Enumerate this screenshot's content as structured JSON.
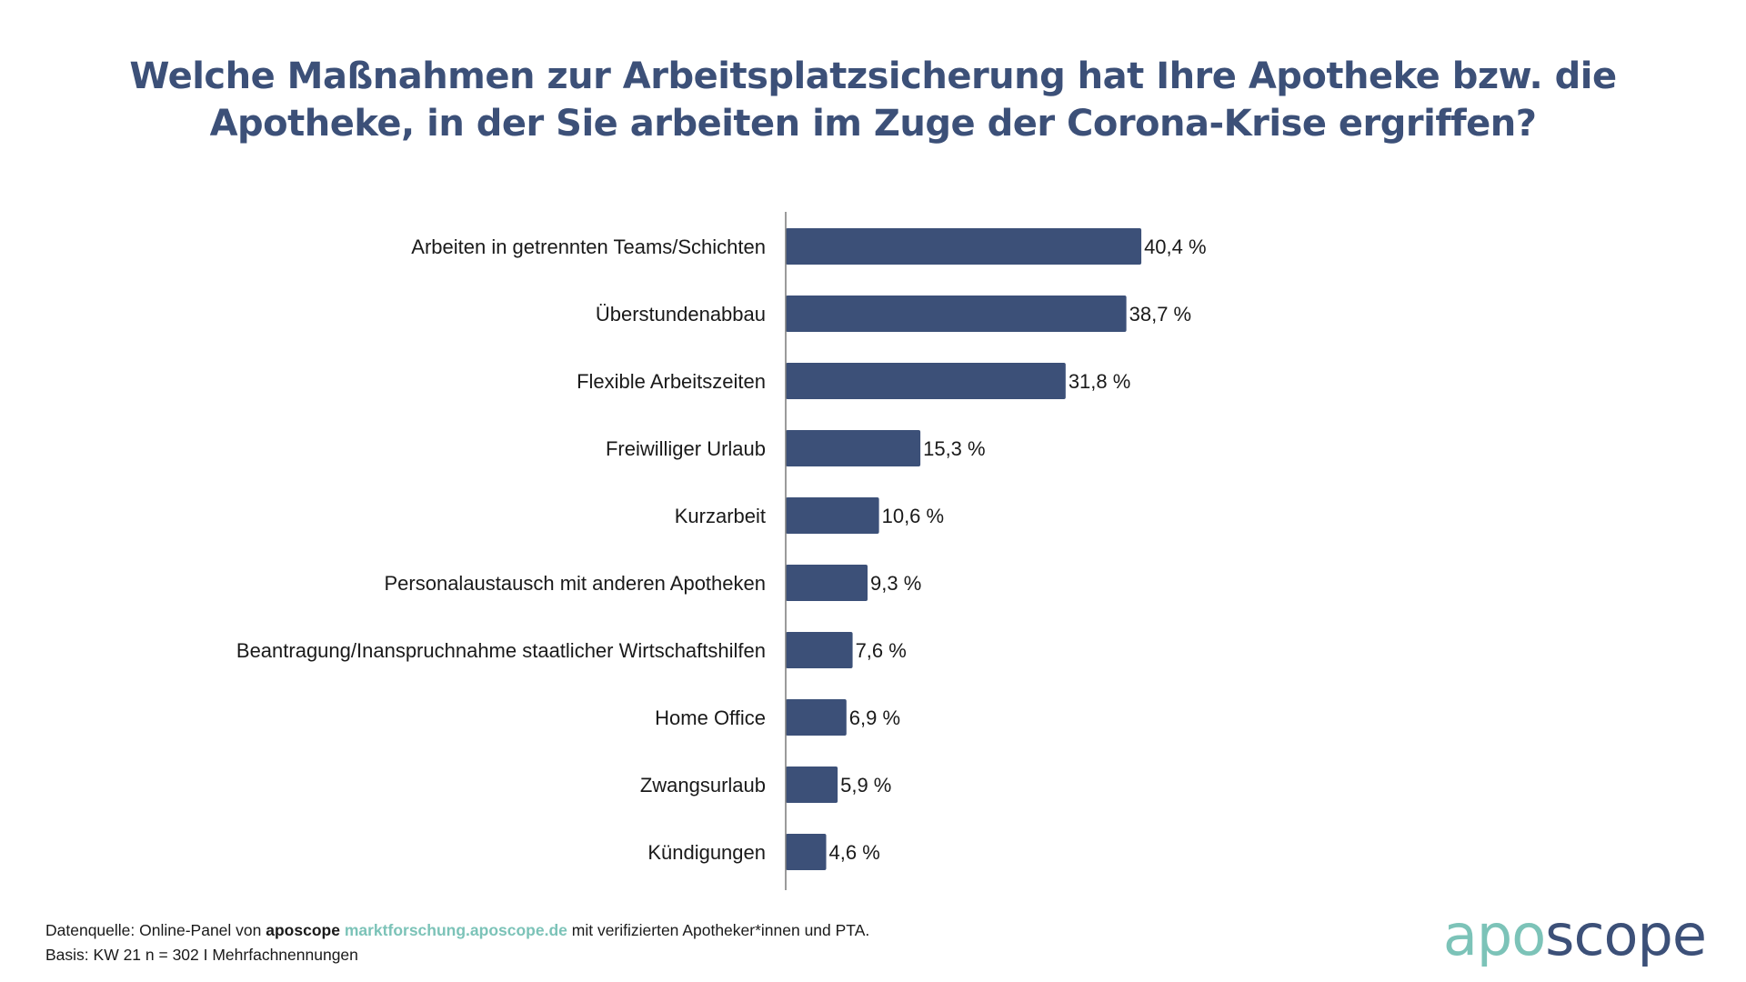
{
  "title": {
    "line1": "Welche Maßnahmen zur Arbeitsplatzsicherung hat Ihre Apotheke bzw. die",
    "line2": "Apotheke, in der Sie arbeiten im Zuge der Corona-Krise ergriffen?"
  },
  "chart_data": {
    "type": "bar",
    "orientation": "horizontal",
    "title": "Welche Maßnahmen zur Arbeitsplatzsicherung hat Ihre Apotheke bzw. die Apotheke, in der Sie arbeiten im Zuge der Corona-Krise ergriffen?",
    "xlabel": "",
    "ylabel": "",
    "unit": "%",
    "grid": false,
    "legend": "none",
    "bar_color": "#3c5078",
    "categories": [
      "Arbeiten in getrennten Teams/Schichten",
      "Überstundenabbau",
      "Flexible Arbeitszeiten",
      "Freiwilliger Urlaub",
      "Kurzarbeit",
      "Personalaustausch mit anderen Apotheken",
      "Beantragung/Inanspruchnahme staatlicher Wirtschaftshilfen",
      "Home Office",
      "Zwangsurlaub",
      "Kündigungen"
    ],
    "values": [
      40.4,
      38.7,
      31.8,
      15.3,
      10.6,
      9.3,
      7.6,
      6.9,
      5.9,
      4.6
    ],
    "value_labels": [
      "40,4 %",
      "38,7 %",
      "31,8 %",
      "15,3 %",
      "10,6 %",
      "9,3 %",
      "7,6 %",
      "6,9 %",
      "5,9 %",
      "4,6 %"
    ],
    "xlim": [
      0,
      100
    ]
  },
  "footer": {
    "line1_prefix": "Datenquelle: Online-Panel von ",
    "line1_brand": "aposcope",
    "line1_link": "marktforschung.aposcope.de",
    "line1_suffix": " mit verifizierten Apotheker*innen und PTA.",
    "line2": "Basis: KW 21 n = 302 I Mehrfachnennungen"
  },
  "logo": {
    "part1": "apo",
    "part2": "scope",
    "color1": "#7cc3b8",
    "color2": "#3c5078"
  }
}
